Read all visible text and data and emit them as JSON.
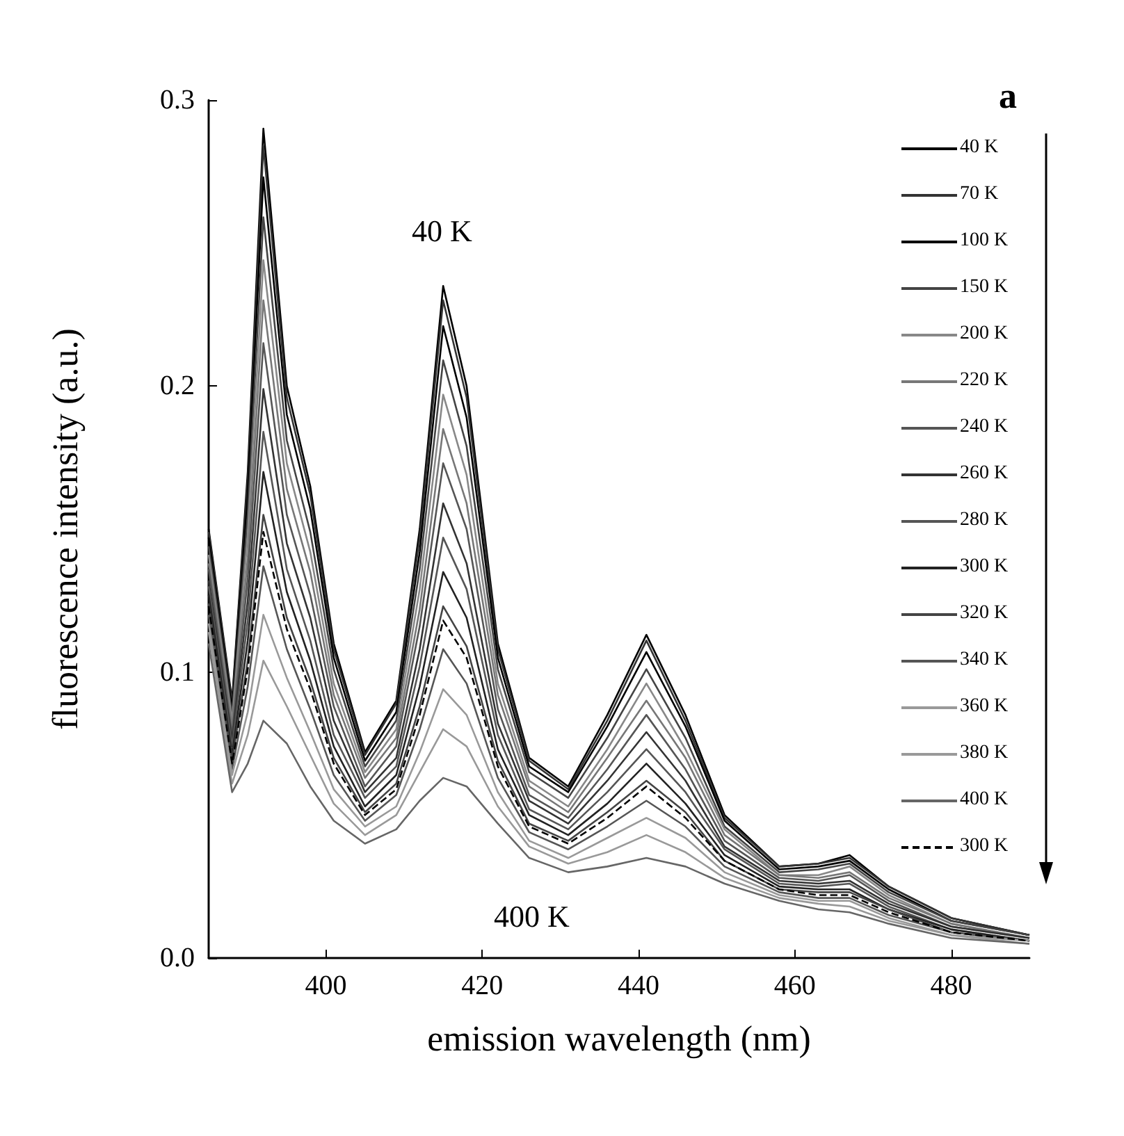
{
  "chart_data": {
    "type": "line",
    "xlabel": "emission wavelength (nm)",
    "ylabel": "fluorescence intensity (a.u.)",
    "x": [
      385,
      388,
      390,
      392,
      395,
      398,
      401,
      405,
      409,
      412,
      415,
      418,
      422,
      426,
      431,
      436,
      441,
      446,
      451,
      458,
      463,
      467,
      472,
      480,
      490
    ],
    "xlim": [
      385,
      490
    ],
    "xticks": [
      400,
      420,
      440,
      460,
      480
    ],
    "ylim": [
      0,
      0.3
    ],
    "yticks": [
      {
        "value": 0,
        "label": "0.0"
      },
      0.1,
      0.2,
      0.3
    ],
    "grid": false,
    "legend": "top right",
    "marker": "none",
    "line_style": "solid",
    "annotations": [
      "a",
      "40 K",
      "400 K"
    ],
    "series": [
      {
        "name": "40 K",
        "color": "#000000",
        "values": [
          0.15,
          0.09,
          0.17,
          0.29,
          0.2,
          0.165,
          0.11,
          0.072,
          0.09,
          0.15,
          0.235,
          0.2,
          0.11,
          0.07,
          0.06,
          0.085,
          0.113,
          0.085,
          0.05,
          0.032,
          0.033,
          0.036,
          0.025,
          0.014,
          0.008
        ]
      },
      {
        "name": "70 K",
        "color": "#333333",
        "values": [
          0.149,
          0.089,
          0.167,
          0.284,
          0.196,
          0.162,
          0.108,
          0.071,
          0.089,
          0.147,
          0.23,
          0.196,
          0.108,
          0.069,
          0.059,
          0.083,
          0.111,
          0.083,
          0.049,
          0.032,
          0.033,
          0.035,
          0.025,
          0.014,
          0.008
        ]
      },
      {
        "name": "100 K",
        "color": "#000000",
        "values": [
          0.147,
          0.087,
          0.162,
          0.273,
          0.19,
          0.157,
          0.105,
          0.069,
          0.086,
          0.142,
          0.221,
          0.189,
          0.105,
          0.067,
          0.058,
          0.081,
          0.107,
          0.081,
          0.048,
          0.031,
          0.032,
          0.034,
          0.024,
          0.013,
          0.008
        ]
      },
      {
        "name": "150 K",
        "color": "#444444",
        "values": [
          0.144,
          0.085,
          0.155,
          0.259,
          0.181,
          0.149,
          0.101,
          0.067,
          0.083,
          0.136,
          0.209,
          0.179,
          0.101,
          0.065,
          0.056,
          0.077,
          0.101,
          0.077,
          0.046,
          0.03,
          0.031,
          0.033,
          0.023,
          0.013,
          0.008
        ]
      },
      {
        "name": "200 K",
        "color": "#888888",
        "values": [
          0.141,
          0.083,
          0.148,
          0.244,
          0.173,
          0.142,
          0.096,
          0.065,
          0.08,
          0.129,
          0.197,
          0.169,
          0.096,
          0.062,
          0.053,
          0.073,
          0.096,
          0.073,
          0.045,
          0.029,
          0.029,
          0.032,
          0.022,
          0.012,
          0.007
        ]
      },
      {
        "name": "220 K",
        "color": "#777777",
        "values": [
          0.138,
          0.081,
          0.14,
          0.23,
          0.164,
          0.135,
          0.092,
          0.063,
          0.077,
          0.122,
          0.185,
          0.159,
          0.092,
          0.06,
          0.051,
          0.07,
          0.09,
          0.07,
          0.043,
          0.029,
          0.028,
          0.03,
          0.021,
          0.012,
          0.007
        ]
      },
      {
        "name": "240 K",
        "color": "#555555",
        "values": [
          0.136,
          0.078,
          0.133,
          0.215,
          0.155,
          0.127,
          0.088,
          0.06,
          0.074,
          0.116,
          0.173,
          0.15,
          0.087,
          0.057,
          0.049,
          0.066,
          0.085,
          0.066,
          0.041,
          0.028,
          0.027,
          0.029,
          0.02,
          0.011,
          0.007
        ]
      },
      {
        "name": "260 K",
        "color": "#333333",
        "values": [
          0.132,
          0.076,
          0.125,
          0.199,
          0.145,
          0.119,
          0.083,
          0.058,
          0.07,
          0.108,
          0.159,
          0.138,
          0.082,
          0.055,
          0.047,
          0.062,
          0.079,
          0.062,
          0.039,
          0.027,
          0.026,
          0.027,
          0.019,
          0.011,
          0.007
        ]
      },
      {
        "name": "280 K",
        "color": "#555555",
        "values": [
          0.13,
          0.074,
          0.118,
          0.184,
          0.136,
          0.111,
          0.078,
          0.056,
          0.067,
          0.102,
          0.147,
          0.129,
          0.078,
          0.052,
          0.045,
          0.058,
          0.073,
          0.058,
          0.038,
          0.026,
          0.025,
          0.026,
          0.018,
          0.01,
          0.006
        ]
      },
      {
        "name": "300 K",
        "color": "#222222",
        "values": [
          0.127,
          0.071,
          0.111,
          0.17,
          0.128,
          0.104,
          0.074,
          0.053,
          0.064,
          0.095,
          0.135,
          0.119,
          0.073,
          0.05,
          0.043,
          0.054,
          0.068,
          0.054,
          0.036,
          0.025,
          0.024,
          0.024,
          0.017,
          0.01,
          0.006
        ]
      },
      {
        "name": "320 K",
        "color": "#444444",
        "values": [
          0.124,
          0.069,
          0.104,
          0.155,
          0.119,
          0.097,
          0.07,
          0.051,
          0.061,
          0.088,
          0.123,
          0.109,
          0.069,
          0.047,
          0.041,
          0.051,
          0.062,
          0.051,
          0.034,
          0.024,
          0.023,
          0.023,
          0.017,
          0.009,
          0.006
        ]
      },
      {
        "name": "340 K",
        "color": "#555555",
        "values": [
          0.12,
          0.066,
          0.095,
          0.137,
          0.108,
          0.087,
          0.064,
          0.048,
          0.057,
          0.08,
          0.108,
          0.096,
          0.063,
          0.044,
          0.038,
          0.046,
          0.055,
          0.046,
          0.032,
          0.023,
          0.021,
          0.021,
          0.015,
          0.009,
          0.006
        ]
      },
      {
        "name": "360 K",
        "color": "#999999",
        "values": [
          0.117,
          0.064,
          0.086,
          0.12,
          0.098,
          0.079,
          0.059,
          0.046,
          0.053,
          0.072,
          0.094,
          0.085,
          0.058,
          0.041,
          0.035,
          0.042,
          0.049,
          0.042,
          0.03,
          0.022,
          0.02,
          0.02,
          0.014,
          0.008,
          0.006
        ]
      },
      {
        "name": "380 K",
        "color": "#999999",
        "values": [
          0.114,
          0.061,
          0.078,
          0.104,
          0.088,
          0.071,
          0.054,
          0.043,
          0.05,
          0.065,
          0.08,
          0.074,
          0.053,
          0.039,
          0.033,
          0.037,
          0.043,
          0.037,
          0.028,
          0.021,
          0.019,
          0.018,
          0.013,
          0.008,
          0.005
        ]
      },
      {
        "name": "400 K",
        "color": "#666666",
        "values": [
          0.11,
          0.058,
          0.068,
          0.083,
          0.075,
          0.06,
          0.048,
          0.04,
          0.045,
          0.055,
          0.063,
          0.06,
          0.047,
          0.035,
          0.03,
          0.032,
          0.035,
          0.032,
          0.026,
          0.02,
          0.017,
          0.016,
          0.012,
          0.007,
          0.005
        ]
      },
      {
        "name": "300 K",
        "color": "#000000",
        "line_style": "dashed",
        "values": [
          0.123,
          0.068,
          0.101,
          0.149,
          0.115,
          0.094,
          0.068,
          0.05,
          0.059,
          0.085,
          0.118,
          0.105,
          0.067,
          0.046,
          0.04,
          0.049,
          0.06,
          0.049,
          0.034,
          0.024,
          0.022,
          0.022,
          0.016,
          0.009,
          0.006
        ]
      }
    ]
  }
}
